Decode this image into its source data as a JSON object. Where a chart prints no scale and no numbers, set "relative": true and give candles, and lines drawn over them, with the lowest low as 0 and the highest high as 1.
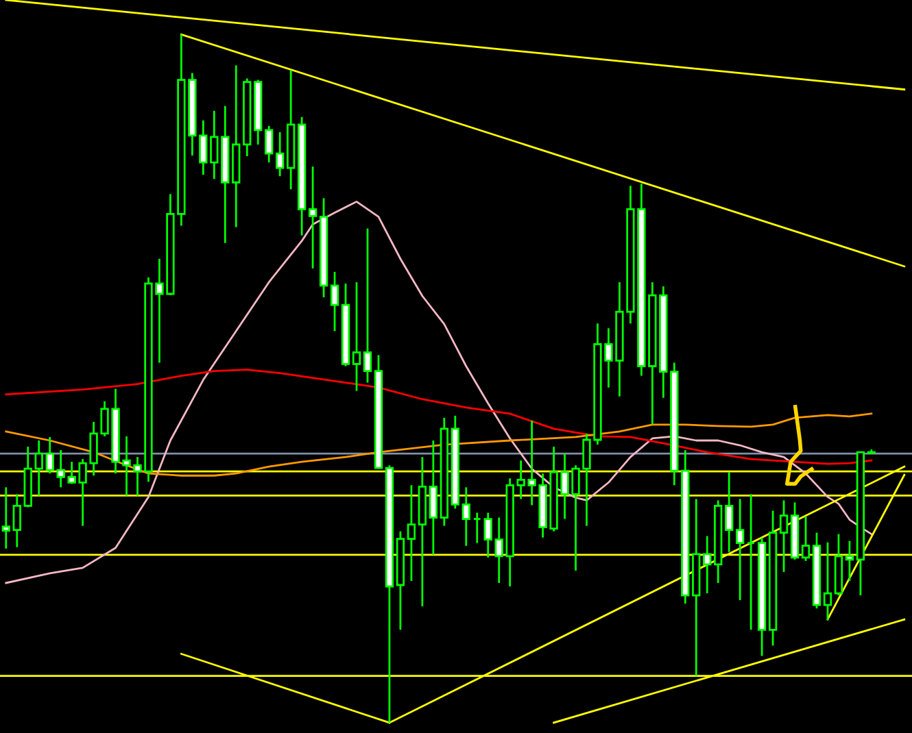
{
  "chart_data": {
    "type": "candlestick",
    "relative": true,
    "categories": [
      null,
      null,
      null,
      null,
      null,
      null,
      null,
      null,
      null,
      null,
      null,
      null,
      null,
      null,
      null,
      null,
      null,
      null,
      null,
      null,
      null,
      null,
      null,
      null,
      null,
      null,
      null,
      null,
      null,
      null,
      null,
      null,
      null,
      null,
      null,
      null,
      null,
      null,
      null,
      null,
      null,
      null,
      null,
      null,
      null,
      null,
      null,
      null,
      null,
      null,
      null,
      null,
      null,
      null,
      null,
      null,
      null,
      null,
      null,
      null,
      null,
      null,
      null,
      null,
      null,
      null,
      null,
      null,
      null,
      null,
      null,
      null,
      null,
      null,
      null,
      null,
      null,
      null,
      null,
      null,
      null,
      null,
      null
    ],
    "ohlc": [
      [
        0.285,
        0.342,
        0.253,
        0.279
      ],
      [
        0.28,
        0.332,
        0.255,
        0.315
      ],
      [
        0.315,
        0.401,
        0.313,
        0.369
      ],
      [
        0.369,
        0.41,
        0.33,
        0.391
      ],
      [
        0.391,
        0.415,
        0.362,
        0.367
      ],
      [
        0.367,
        0.396,
        0.342,
        0.357
      ],
      [
        0.357,
        0.379,
        0.347,
        0.349
      ],
      [
        0.349,
        0.383,
        0.286,
        0.377
      ],
      [
        0.377,
        0.437,
        0.359,
        0.42
      ],
      [
        0.42,
        0.467,
        0.416,
        0.456
      ],
      [
        0.456,
        0.485,
        0.362,
        0.379
      ],
      [
        0.381,
        0.416,
        0.33,
        0.374
      ],
      [
        0.374,
        0.386,
        0.33,
        0.365
      ],
      [
        0.365,
        0.647,
        0.35,
        0.638
      ],
      [
        0.638,
        0.674,
        0.523,
        0.623
      ],
      [
        0.623,
        0.768,
        0.621,
        0.739
      ],
      [
        0.739,
        1.0,
        0.722,
        0.934
      ],
      [
        0.934,
        0.944,
        0.824,
        0.853
      ],
      [
        0.853,
        0.875,
        0.796,
        0.814
      ],
      [
        0.814,
        0.889,
        0.79,
        0.851
      ],
      [
        0.851,
        0.896,
        0.697,
        0.785
      ],
      [
        0.785,
        0.955,
        0.72,
        0.84
      ],
      [
        0.84,
        0.936,
        0.823,
        0.931
      ],
      [
        0.931,
        0.934,
        0.84,
        0.861
      ],
      [
        0.861,
        0.867,
        0.814,
        0.827
      ],
      [
        0.827,
        0.858,
        0.794,
        0.806
      ],
      [
        0.806,
        0.948,
        0.775,
        0.869
      ],
      [
        0.869,
        0.88,
        0.708,
        0.746
      ],
      [
        0.746,
        0.808,
        0.66,
        0.736
      ],
      [
        0.735,
        0.762,
        0.618,
        0.635
      ],
      [
        0.635,
        0.655,
        0.569,
        0.607
      ],
      [
        0.607,
        0.638,
        0.518,
        0.521
      ],
      [
        0.521,
        0.64,
        0.482,
        0.538
      ],
      [
        0.538,
        0.718,
        0.494,
        0.511
      ],
      [
        0.511,
        0.534,
        0.369,
        0.37
      ],
      [
        0.37,
        0.374,
        0.0,
        0.198
      ],
      [
        0.2,
        0.278,
        0.135,
        0.267
      ],
      [
        0.267,
        0.345,
        0.206,
        0.288
      ],
      [
        0.288,
        0.386,
        0.169,
        0.343
      ],
      [
        0.343,
        0.41,
        0.244,
        0.298
      ],
      [
        0.298,
        0.443,
        0.286,
        0.427
      ],
      [
        0.427,
        0.446,
        0.311,
        0.317
      ],
      [
        0.317,
        0.342,
        0.257,
        0.296
      ],
      [
        0.296,
        0.305,
        0.261,
        0.296
      ],
      [
        0.296,
        0.305,
        0.24,
        0.266
      ],
      [
        0.266,
        0.298,
        0.203,
        0.242
      ],
      [
        0.242,
        0.355,
        0.198,
        0.345
      ],
      [
        0.345,
        0.381,
        0.325,
        0.353
      ],
      [
        0.353,
        0.439,
        0.316,
        0.345
      ],
      [
        0.345,
        0.362,
        0.269,
        0.284
      ],
      [
        0.282,
        0.401,
        0.278,
        0.364
      ],
      [
        0.364,
        0.391,
        0.296,
        0.332
      ],
      [
        0.332,
        0.374,
        0.221,
        0.369
      ],
      [
        0.369,
        0.42,
        0.286,
        0.411
      ],
      [
        0.411,
        0.58,
        0.404,
        0.55
      ],
      [
        0.55,
        0.573,
        0.487,
        0.526
      ],
      [
        0.526,
        0.64,
        0.474,
        0.597
      ],
      [
        0.597,
        0.78,
        0.58,
        0.746
      ],
      [
        0.746,
        0.783,
        0.504,
        0.518
      ],
      [
        0.518,
        0.64,
        0.433,
        0.621
      ],
      [
        0.621,
        0.634,
        0.472,
        0.51
      ],
      [
        0.51,
        0.523,
        0.345,
        0.366
      ],
      [
        0.366,
        0.396,
        0.173,
        0.185
      ],
      [
        0.185,
        0.325,
        0.068,
        0.245
      ],
      [
        0.245,
        0.271,
        0.188,
        0.23
      ],
      [
        0.23,
        0.323,
        0.203,
        0.315
      ],
      [
        0.315,
        0.364,
        0.248,
        0.28
      ],
      [
        0.28,
        0.325,
        0.178,
        0.261
      ],
      [
        0.261,
        0.332,
        0.135,
        0.261
      ],
      [
        0.261,
        0.269,
        0.097,
        0.135
      ],
      [
        0.135,
        0.308,
        0.112,
        0.276
      ],
      [
        0.276,
        0.323,
        0.219,
        0.301
      ],
      [
        0.301,
        0.32,
        0.237,
        0.24
      ],
      [
        0.24,
        0.3,
        0.235,
        0.257
      ],
      [
        0.257,
        0.276,
        0.166,
        0.171
      ],
      [
        0.171,
        0.262,
        0.149,
        0.188
      ],
      [
        0.188,
        0.274,
        0.185,
        0.242
      ],
      [
        0.242,
        0.264,
        0.206,
        0.237
      ],
      [
        0.237,
        0.394,
        0.185,
        0.393
      ],
      [
        0.392,
        0.397,
        0.391,
        0.393
      ],
      null,
      null,
      null
    ],
    "series": [
      {
        "type": "line",
        "color": "#f4b8c4",
        "values": [
          0.203,
          null,
          null,
          null,
          0.217,
          null,
          null,
          0.225,
          null,
          null,
          0.254,
          null,
          null,
          0.328,
          null,
          0.41,
          null,
          null,
          0.498,
          null,
          null,
          0.569,
          null,
          null,
          0.64,
          null,
          null,
          0.7,
          0.724,
          null,
          0.741,
          null,
          0.757,
          null,
          0.735,
          null,
          0.674,
          null,
          0.62,
          null,
          0.579,
          null,
          0.518,
          null,
          0.464,
          null,
          0.413,
          null,
          0.369,
          null,
          0.342,
          null,
          0.327,
          0.323,
          null,
          0.349,
          null,
          0.386,
          null,
          0.413,
          null,
          0.416,
          null,
          0.41,
          null,
          0.41,
          null,
          0.403,
          null,
          0.393,
          null,
          0.386,
          null,
          0.362,
          null,
          0.328,
          0.318,
          0.295,
          0.284,
          0.274,
          null,
          null,
          null
        ]
      },
      {
        "type": "line",
        "color": "#ff0000",
        "values": [
          0.477,
          null,
          null,
          null,
          null,
          null,
          null,
          0.484,
          null,
          null,
          null,
          null,
          0.492,
          null,
          null,
          null,
          0.504,
          null,
          null,
          0.511,
          null,
          null,
          0.513,
          null,
          null,
          0.508,
          null,
          null,
          0.501,
          null,
          null,
          0.494,
          null,
          null,
          0.487,
          null,
          null,
          null,
          0.47,
          null,
          null,
          null,
          0.458,
          null,
          null,
          null,
          0.449,
          null,
          null,
          null,
          0.427,
          null,
          null,
          null,
          0.416,
          null,
          null,
          0.415,
          null,
          null,
          0.406,
          null,
          null,
          null,
          0.393,
          null,
          null,
          null,
          0.383,
          null,
          null,
          null,
          0.379,
          null,
          null,
          0.376,
          null,
          0.377,
          null,
          0.381,
          null,
          null,
          null
        ]
      },
      {
        "type": "line",
        "color": "#ff9900",
        "values": [
          0.423,
          null,
          null,
          null,
          0.41,
          null,
          null,
          null,
          0.393,
          null,
          null,
          0.374,
          null,
          0.362,
          null,
          null,
          0.359,
          null,
          null,
          0.359,
          null,
          0.362,
          null,
          null,
          0.372,
          null,
          null,
          0.379,
          null,
          null,
          null,
          0.386,
          null,
          null,
          0.393,
          null,
          null,
          null,
          null,
          null,
          0.404,
          null,
          null,
          null,
          null,
          null,
          0.41,
          null,
          null,
          null,
          null,
          null,
          0.415,
          null,
          null,
          null,
          0.423,
          null,
          null,
          0.433,
          null,
          null,
          0.433,
          null,
          null,
          0.431,
          null,
          null,
          0.43,
          null,
          0.433,
          null,
          0.443,
          null,
          null,
          0.447,
          null,
          0.445,
          null,
          0.449,
          null,
          null,
          null
        ]
      },
      {
        "type": "line",
        "color": "#ffff00",
        "values": [
          1.05,
          null,
          null,
          null,
          null,
          null,
          null,
          null,
          null,
          null,
          null,
          null,
          null,
          null,
          null,
          null,
          null,
          null,
          null,
          null,
          null,
          null,
          null,
          null,
          null,
          null,
          null,
          null,
          null,
          null,
          null,
          null,
          null,
          null,
          null,
          null,
          null,
          null,
          null,
          null,
          null,
          null,
          null,
          null,
          null,
          null,
          null,
          null,
          null,
          null,
          null,
          null,
          null,
          null,
          null,
          null,
          null,
          null,
          null,
          null,
          null,
          null,
          null,
          null,
          null,
          null,
          null,
          null,
          null,
          null,
          null,
          null,
          null,
          null,
          null,
          null,
          null,
          null,
          null,
          null,
          null,
          null,
          0.92
        ]
      },
      {
        "type": "line",
        "color": "#ffff00",
        "values": [
          null,
          null,
          null,
          null,
          null,
          null,
          null,
          null,
          null,
          null,
          null,
          null,
          null,
          null,
          null,
          null,
          1.0,
          null,
          null,
          null,
          null,
          null,
          null,
          null,
          null,
          null,
          null,
          null,
          null,
          null,
          null,
          null,
          null,
          null,
          null,
          null,
          null,
          null,
          null,
          null,
          null,
          null,
          null,
          null,
          null,
          null,
          null,
          null,
          null,
          null,
          null,
          null,
          null,
          null,
          null,
          null,
          null,
          null,
          null,
          null,
          null,
          null,
          null,
          null,
          null,
          null,
          null,
          null,
          null,
          null,
          null,
          null,
          null,
          null,
          null,
          null,
          null,
          null,
          null,
          null,
          null,
          null,
          0.663
        ]
      },
      {
        "type": "line",
        "color": "#ffff00",
        "values": [
          null,
          null,
          null,
          null,
          null,
          null,
          null,
          null,
          null,
          null,
          null,
          null,
          null,
          null,
          null,
          null,
          0.1,
          null,
          null,
          null,
          null,
          null,
          null,
          null,
          null,
          null,
          null,
          null,
          null,
          null,
          null,
          null,
          null,
          null,
          null,
          0.0,
          null,
          null,
          null,
          null,
          null,
          null,
          null,
          null,
          null,
          null,
          null,
          null,
          null,
          null,
          null,
          null,
          null,
          null,
          null,
          null,
          null,
          null,
          null,
          null,
          null,
          null,
          null,
          null,
          null,
          null,
          null,
          null,
          null,
          null,
          null,
          null,
          null,
          null,
          null,
          null,
          null,
          null,
          null,
          null,
          null,
          null,
          null
        ]
      },
      {
        "type": "line",
        "color": "#ffff00",
        "values": [
          null,
          null,
          null,
          null,
          null,
          null,
          null,
          null,
          null,
          null,
          null,
          null,
          null,
          null,
          null,
          null,
          null,
          null,
          null,
          null,
          null,
          null,
          null,
          null,
          null,
          null,
          null,
          null,
          null,
          null,
          null,
          null,
          null,
          null,
          null,
          0.0,
          null,
          null,
          null,
          null,
          null,
          null,
          null,
          null,
          null,
          null,
          null,
          null,
          null,
          null,
          null,
          null,
          null,
          null,
          null,
          null,
          null,
          null,
          null,
          null,
          null,
          null,
          null,
          null,
          null,
          null,
          null,
          null,
          null,
          null,
          null,
          null,
          null,
          null,
          null,
          null,
          null,
          null,
          null,
          null,
          null,
          null,
          0.372
        ]
      },
      {
        "type": "line",
        "color": "#ffff00",
        "values": [
          null,
          null,
          null,
          null,
          null,
          null,
          null,
          null,
          null,
          null,
          null,
          null,
          null,
          null,
          null,
          null,
          null,
          null,
          null,
          null,
          null,
          null,
          null,
          null,
          null,
          null,
          null,
          null,
          null,
          null,
          null,
          null,
          null,
          null,
          null,
          null,
          null,
          null,
          null,
          null,
          null,
          null,
          null,
          null,
          null,
          null,
          null,
          null,
          null,
          null,
          0.0,
          null,
          null,
          null,
          null,
          null,
          null,
          null,
          null,
          null,
          null,
          null,
          null,
          null,
          null,
          null,
          null,
          null,
          null,
          null,
          null,
          null,
          null,
          null,
          null,
          null,
          null,
          null,
          null,
          null,
          null,
          null,
          0.15
        ]
      },
      {
        "type": "line",
        "color": "#ffff00",
        "values": [
          null,
          null,
          null,
          null,
          null,
          null,
          null,
          null,
          null,
          null,
          null,
          null,
          null,
          null,
          null,
          null,
          null,
          null,
          null,
          null,
          null,
          null,
          null,
          null,
          null,
          null,
          null,
          null,
          null,
          null,
          null,
          null,
          null,
          null,
          null,
          null,
          null,
          null,
          null,
          null,
          null,
          null,
          null,
          null,
          null,
          null,
          null,
          null,
          null,
          null,
          null,
          null,
          null,
          null,
          null,
          null,
          null,
          null,
          null,
          null,
          null,
          null,
          null,
          null,
          null,
          null,
          null,
          null,
          null,
          null,
          null,
          null,
          null,
          null,
          null,
          0.15,
          null,
          null,
          null,
          null,
          null,
          null,
          0.36
        ]
      }
    ],
    "ref_lines": [
      {
        "axis": "y",
        "value": 0.391,
        "color": "#8090a8"
      },
      {
        "axis": "y",
        "value": 0.365,
        "color": "#ffff00"
      },
      {
        "axis": "y",
        "value": 0.33,
        "color": "#ffff00"
      },
      {
        "axis": "y",
        "value": 0.244,
        "color": "#ffff00"
      },
      {
        "axis": "y",
        "value": 0.068,
        "color": "#ffff00"
      }
    ]
  }
}
